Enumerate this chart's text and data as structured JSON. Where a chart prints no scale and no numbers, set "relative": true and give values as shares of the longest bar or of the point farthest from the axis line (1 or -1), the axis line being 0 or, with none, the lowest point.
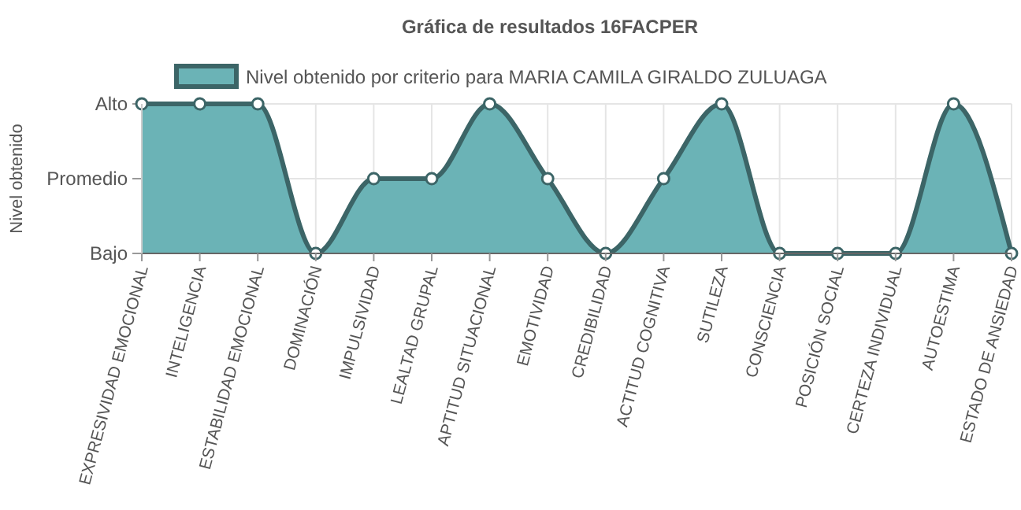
{
  "chart_data": {
    "type": "area",
    "title": "Gráfica de resultados 16FACPER",
    "ylabel": "Nivel obtenido",
    "relative": true,
    "categories": [
      "EXPRESIVIDAD EMOCIONAL",
      "INTELIGENCIA",
      "ESTABILIDAD EMOCIONAL",
      "DOMINACIÓN",
      "IMPULSIVIDAD",
      "LEALTAD GRUPAL",
      "APTITUD SITUACIONAL",
      "EMOTIVIDAD",
      "CREDIBILIDAD",
      "ACTITUD COGNITIVA",
      "SUTILEZA",
      "CONSCIENCIA",
      "POSICIÓN SOCIAL",
      "CERTEZA INDIVIDUAL",
      "AUTOESTIMA",
      "ESTADO DE ANSIEDAD"
    ],
    "series": [
      {
        "name": "Nivel obtenido por criterio para MARIA CAMILA GIRALDO ZULUAGA",
        "color": "#6bb3b6",
        "values": [
          1,
          1,
          1,
          0,
          0.5,
          0.5,
          1,
          0.5,
          0,
          0.5,
          1,
          0,
          0,
          0,
          1,
          0
        ]
      }
    ],
    "ref_lines": [
      {
        "axis": "y",
        "value": 0,
        "label": "Bajo"
      },
      {
        "axis": "y",
        "value": 0.5,
        "label": "Promedio"
      },
      {
        "axis": "y",
        "value": 1,
        "label": "Alto"
      }
    ],
    "grid": "x",
    "legend": "top",
    "marker": "circle"
  }
}
